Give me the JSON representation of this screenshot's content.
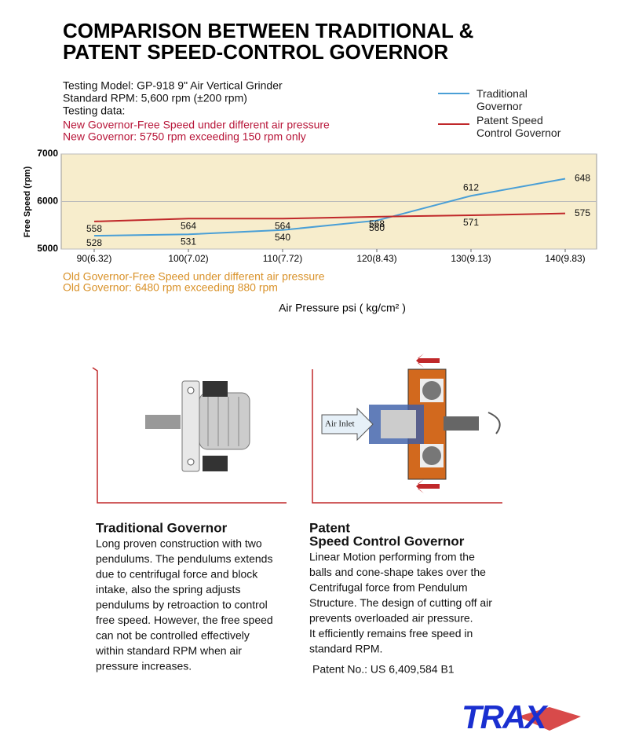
{
  "header": {
    "title_lines": [
      "COMPARISON BETWEEN TRADITIONAL &",
      "PATENT SPEED-CONTROL GOVERNOR"
    ]
  },
  "testing_info": [
    "Testing Model: GP-918  9\" Air Vertical Grinder",
    "Standard RPM: 5,600 rpm (±200 rpm)",
    "Testing data:"
  ],
  "new_governor_notes": [
    "New Governor-Free Speed under different air pressure",
    "New Governor: 5750 rpm        exceeding 150 rpm only"
  ],
  "old_governor_notes": [
    "Old Governor-Free Speed under different air pressure",
    "Old Governor: 6480 rpm  exceeding 880 rpm"
  ],
  "chart_data": {
    "type": "line",
    "x_label": "Air Pressure psi ( kg/cm² )",
    "y_label": "Free Speed (rpm)",
    "categories": [
      "90(6.32)",
      "100(7.02)",
      "110(7.72)",
      "120(8.43)",
      "130(9.13)",
      "140(9.83)"
    ],
    "ylim": [
      5000,
      7000
    ],
    "yticks": [
      5000,
      6000,
      7000
    ],
    "grid": true,
    "series": [
      {
        "name": "Traditional Governor",
        "color": "#4a9fd6",
        "values": [
          5280,
          5310,
          5400,
          5600,
          6120,
          6480
        ],
        "value_labels": [
          "528",
          "531",
          "540",
          "560",
          "612",
          "648"
        ]
      },
      {
        "name": "Patent Speed Control Governor",
        "color": "#c0282a",
        "values": [
          5580,
          5640,
          5640,
          5680,
          5710,
          5750
        ],
        "value_labels": [
          "558",
          "564",
          "564",
          "568",
          "571",
          "575"
        ]
      }
    ]
  },
  "diagram": {
    "air_inlet": "Air Inlet"
  },
  "traditional": {
    "title": "Traditional Governor",
    "lines": [
      "Long proven construction with two",
      "pendulums. The pendulums extends",
      "due to centrifugal force and block",
      "intake, also the spring adjusts",
      "pendulums by retroaction to control",
      "free speed. However, the free speed",
      "can not be controlled effectively",
      "within standard RPM when air",
      "pressure increases."
    ]
  },
  "patent": {
    "title_lines": [
      "Patent",
      "Speed Control Governor"
    ],
    "lines": [
      "Linear Motion performing from the",
      "balls and cone-shape takes over the",
      "Centrifugal force from Pendulum",
      "Structure. The design of cutting off air",
      "prevents overloaded air pressure.",
      "It efficiently remains free speed in",
      "standard RPM."
    ],
    "patent_no": "Patent No.: US 6,409,584 B1"
  },
  "logo": "TRAX"
}
